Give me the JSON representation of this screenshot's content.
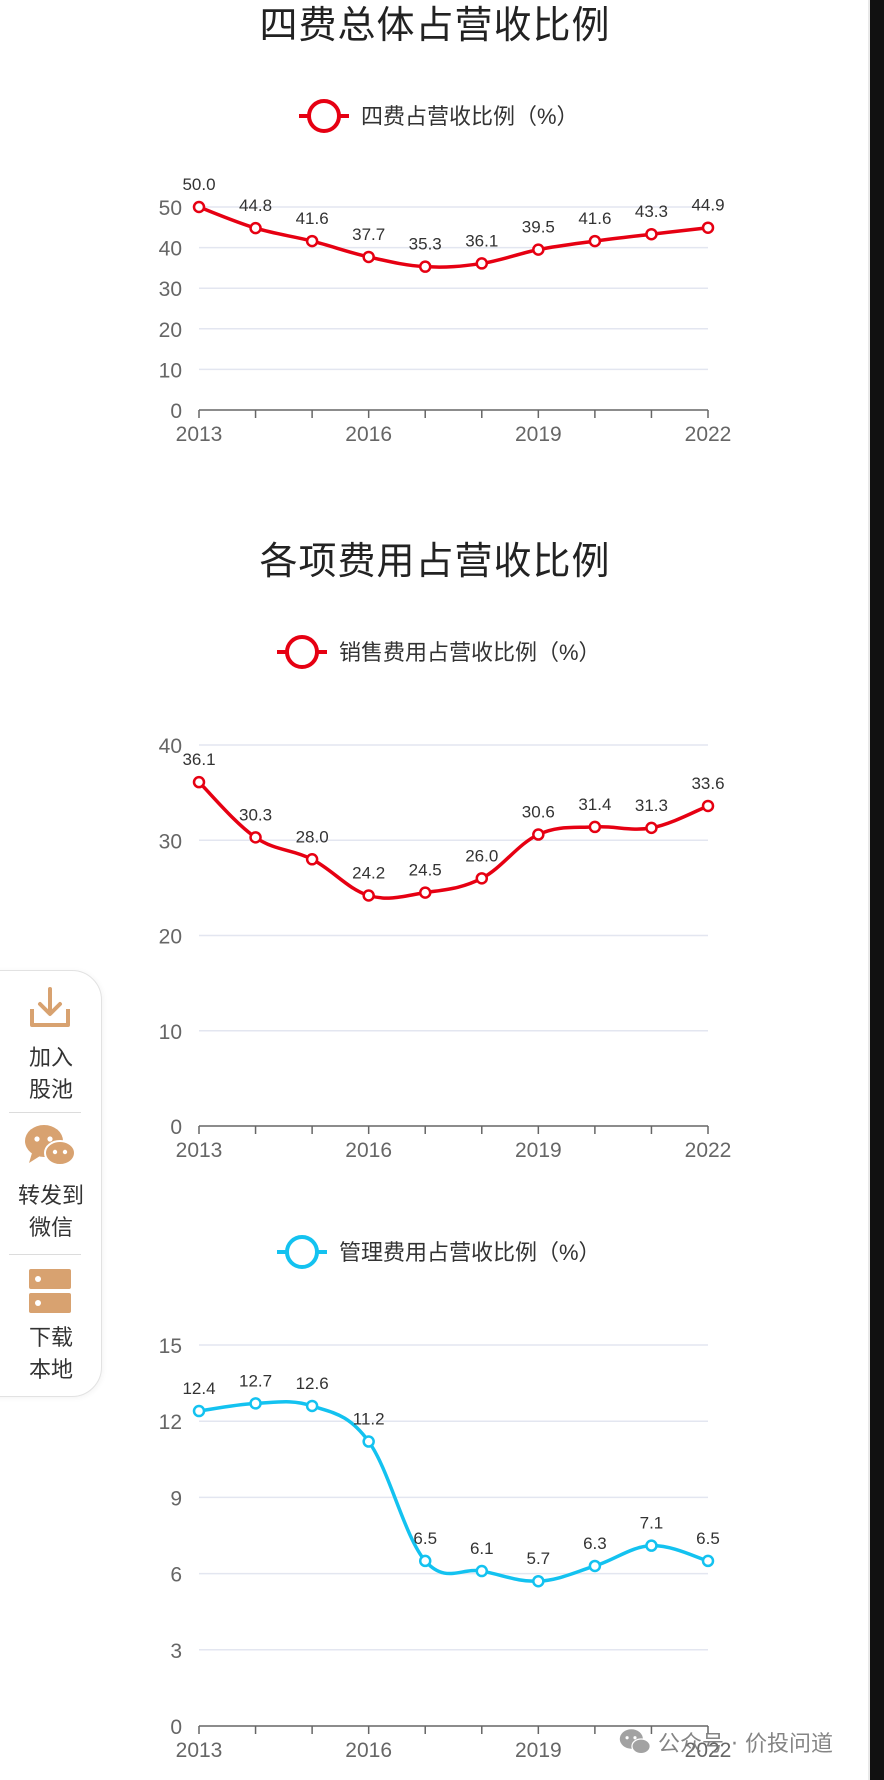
{
  "titles": {
    "total": "四费总体占营收比例",
    "items": "各项费用占营收比例"
  },
  "side_panel": {
    "add_pool": [
      "加入",
      "股池"
    ],
    "share_wechat": [
      "转发到",
      "微信"
    ],
    "download": [
      "下载",
      "本地"
    ]
  },
  "watermark": {
    "text": "公众号 · 价投问道"
  },
  "colors": {
    "red": "#e60012",
    "cyan": "#13c2f0",
    "icon": "#d8a270"
  },
  "chart_data": [
    {
      "type": "line",
      "legend": "四费占营收比例（%）",
      "x": [
        "2013",
        "2014",
        "2015",
        "2016",
        "2017",
        "2018",
        "2019",
        "2020",
        "2021",
        "2022"
      ],
      "x_tick_labels": [
        "2013",
        "2016",
        "2019",
        "2022"
      ],
      "values": [
        50.0,
        44.8,
        41.6,
        37.7,
        35.3,
        36.1,
        39.5,
        41.6,
        43.3,
        44.9
      ],
      "ylim": [
        0,
        50
      ],
      "yticks": [
        0,
        10,
        20,
        30,
        40,
        50
      ],
      "color": "#e60012",
      "grid": true,
      "legend_position": "top-center"
    },
    {
      "type": "line",
      "legend": "销售费用占营收比例（%）",
      "x": [
        "2013",
        "2014",
        "2015",
        "2016",
        "2017",
        "2018",
        "2019",
        "2020",
        "2021",
        "2022"
      ],
      "x_tick_labels": [
        "2013",
        "2016",
        "2019",
        "2022"
      ],
      "values": [
        36.1,
        30.3,
        28.0,
        24.2,
        24.5,
        26.0,
        30.6,
        31.4,
        31.3,
        33.6
      ],
      "ylim": [
        0,
        40
      ],
      "yticks": [
        0,
        10,
        20,
        30,
        40
      ],
      "color": "#e60012",
      "grid": true,
      "legend_position": "top-center"
    },
    {
      "type": "line",
      "legend": "管理费用占营收比例（%）",
      "x": [
        "2013",
        "2014",
        "2015",
        "2016",
        "2017",
        "2018",
        "2019",
        "2020",
        "2021",
        "2022"
      ],
      "x_tick_labels": [
        "2013",
        "2016",
        "2019",
        "2022"
      ],
      "values": [
        12.4,
        12.7,
        12.6,
        11.2,
        6.5,
        6.1,
        5.7,
        6.3,
        7.1,
        6.5
      ],
      "ylim": [
        0,
        15
      ],
      "yticks": [
        0,
        3,
        6,
        9,
        12,
        15
      ],
      "color": "#13c2f0",
      "grid": true,
      "legend_position": "top-center"
    }
  ]
}
